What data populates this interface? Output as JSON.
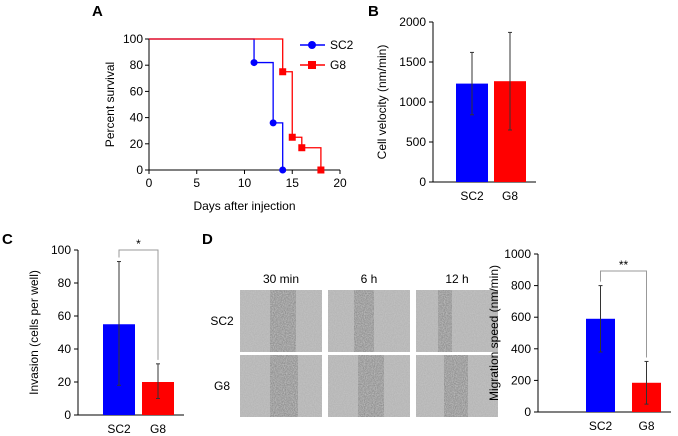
{
  "panels": [
    "A",
    "B",
    "C",
    "D"
  ],
  "colors": {
    "SC2": "#0000ff",
    "G8": "#ff0000",
    "error": "#333333"
  },
  "chart_data": [
    {
      "panel": "A",
      "type": "line",
      "step": true,
      "xlabel": "Days after injection",
      "ylabel": "Percent survival",
      "xlim": [
        0,
        20
      ],
      "ylim": [
        0,
        100
      ],
      "xticks": [
        0,
        5,
        10,
        15,
        20
      ],
      "yticks": [
        0,
        20,
        40,
        60,
        80,
        100
      ],
      "legend": "top-right",
      "series": [
        {
          "name": "SC2",
          "marker": "circle",
          "x": [
            0,
            11,
            13,
            14
          ],
          "y": [
            100,
            82,
            36,
            0
          ]
        },
        {
          "name": "G8",
          "marker": "square",
          "x": [
            0,
            14,
            15,
            16,
            18
          ],
          "y": [
            100,
            75,
            25,
            17,
            0
          ]
        }
      ]
    },
    {
      "panel": "B",
      "type": "bar",
      "categories": [
        "SC2",
        "G8"
      ],
      "values": [
        1230,
        1260
      ],
      "error_low": [
        840,
        650
      ],
      "error_high": [
        1620,
        1870
      ],
      "ylabel": "Cell velocity (nm/min)",
      "ylim": [
        0,
        2000
      ],
      "yticks": [
        0,
        500,
        1000,
        1500,
        2000
      ]
    },
    {
      "panel": "C",
      "type": "bar",
      "categories": [
        "SC2",
        "G8"
      ],
      "values": [
        55,
        20
      ],
      "error_low": [
        18,
        10
      ],
      "error_high": [
        93,
        31
      ],
      "ylabel": "Invasion (cells per well)",
      "ylim": [
        0,
        100
      ],
      "yticks": [
        0,
        20,
        40,
        60,
        80,
        100
      ],
      "significance": "*"
    },
    {
      "panel": "D",
      "type": "bar",
      "categories": [
        "SC2",
        "G8"
      ],
      "values": [
        590,
        185
      ],
      "error_low": [
        380,
        50
      ],
      "error_high": [
        800,
        320
      ],
      "ylabel": "Migration speed (nm/min)",
      "ylim": [
        0,
        1000
      ],
      "yticks": [
        0,
        200,
        400,
        600,
        800,
        1000
      ],
      "significance": "**"
    }
  ],
  "micrographs": {
    "columns": [
      "30 min",
      "6 h",
      "12 h"
    ],
    "rows": [
      "SC2",
      "G8"
    ]
  }
}
